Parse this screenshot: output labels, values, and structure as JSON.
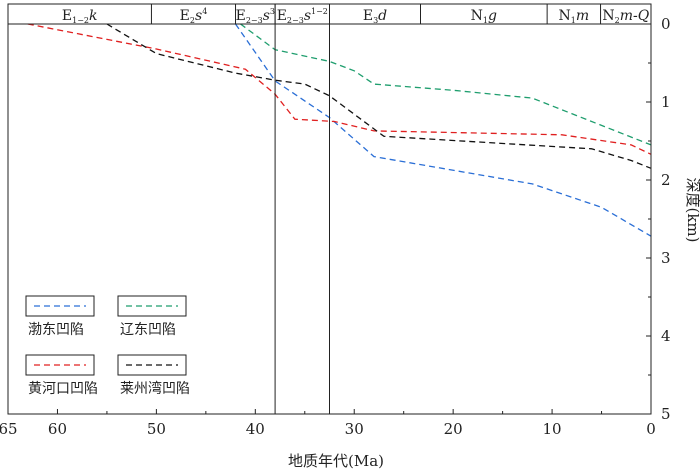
{
  "chart_data": {
    "type": "line",
    "xlabel": "地质年代(Ma)",
    "ylabel": "深度(km)",
    "xlim": [
      65,
      0
    ],
    "ylim": [
      0,
      5
    ],
    "x_reversed": true,
    "y_inverted": true,
    "xticks": [
      "65",
      "60",
      "50",
      "40",
      "30",
      "20",
      "10",
      "0"
    ],
    "xtick_values": [
      65,
      60,
      50,
      40,
      30,
      20,
      10,
      0
    ],
    "yticks": [
      "0",
      "1",
      "2",
      "3",
      "4",
      "5"
    ],
    "ytick_values": [
      0,
      1,
      2,
      3,
      4,
      5
    ],
    "strata": [
      {
        "label_main": "E",
        "label_sub": "1−2",
        "label_tail": "k",
        "sup": "",
        "start": 65,
        "end": 50.5
      },
      {
        "label_main": "E",
        "label_sub": "2",
        "label_tail": "s",
        "sup": "4",
        "start": 50.5,
        "end": 42
      },
      {
        "label_main": "E",
        "label_sub": "2−3",
        "label_tail": "s",
        "sup": "3",
        "start": 42,
        "end": 38
      },
      {
        "label_main": "E",
        "label_sub": "2−3",
        "label_tail": "s",
        "sup": "1−2",
        "start": 38,
        "end": 32.5
      },
      {
        "label_main": "E",
        "label_sub": "3",
        "label_tail": "d",
        "sup": "",
        "start": 32.5,
        "end": 23.3
      },
      {
        "label_main": "N",
        "label_sub": "1",
        "label_tail": "g",
        "sup": "",
        "start": 23.3,
        "end": 10.5
      },
      {
        "label_main": "N",
        "label_sub": "1",
        "label_tail": "m",
        "sup": "",
        "start": 10.5,
        "end": 5.1
      },
      {
        "label_main": "N",
        "label_sub": "2",
        "label_tail": "m-Q",
        "sup": "",
        "start": 5.1,
        "end": 0
      }
    ],
    "boundary_lines": [
      38,
      32.5
    ],
    "series": [
      {
        "name": "渤东凹陷",
        "color": "#2b6fd6",
        "points": [
          [
            42,
            0
          ],
          [
            38,
            0.73
          ],
          [
            32.5,
            1.2
          ],
          [
            28,
            1.7
          ],
          [
            12,
            2.05
          ],
          [
            5,
            2.35
          ],
          [
            0,
            2.72
          ]
        ]
      },
      {
        "name": "辽东凹陷",
        "color": "#1f9e6e",
        "points": [
          [
            41.5,
            0
          ],
          [
            38,
            0.33
          ],
          [
            32.5,
            0.48
          ],
          [
            30,
            0.6
          ],
          [
            28,
            0.77
          ],
          [
            20,
            0.85
          ],
          [
            12,
            0.95
          ],
          [
            0,
            1.55
          ]
        ]
      },
      {
        "name": "黄河口凹陷",
        "color": "#e02020",
        "points": [
          [
            63,
            0
          ],
          [
            50,
            0.32
          ],
          [
            41,
            0.58
          ],
          [
            38,
            0.9
          ],
          [
            36,
            1.22
          ],
          [
            32,
            1.25
          ],
          [
            28,
            1.37
          ],
          [
            9,
            1.42
          ],
          [
            2,
            1.55
          ],
          [
            0,
            1.67
          ]
        ]
      },
      {
        "name": "莱州湾凹陷",
        "color": "#111111",
        "points": [
          [
            55,
            0
          ],
          [
            50,
            0.38
          ],
          [
            42,
            0.63
          ],
          [
            38,
            0.72
          ],
          [
            35,
            0.77
          ],
          [
            32.5,
            0.92
          ],
          [
            27,
            1.44
          ],
          [
            6,
            1.6
          ],
          [
            2,
            1.75
          ],
          [
            0,
            1.85
          ]
        ]
      }
    ]
  }
}
